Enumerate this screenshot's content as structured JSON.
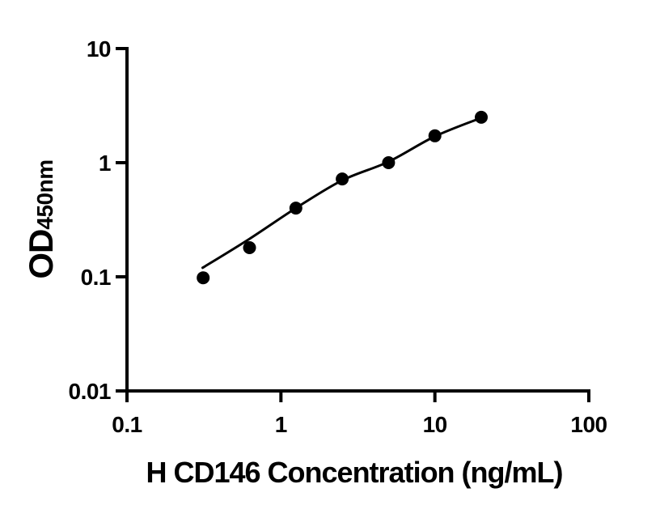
{
  "figure": {
    "description": "ELISA standard curve plot"
  },
  "colors": {
    "foreground": "#000000",
    "background": "#ffffff"
  },
  "chart_data": {
    "type": "scatter",
    "title": "",
    "xlabel": "H CD146 Concentration (ng/mL)",
    "ylabel_main": "OD",
    "ylabel_sub": "450nm",
    "x_scale": "log",
    "y_scale": "log",
    "xlim": [
      0.1,
      100
    ],
    "ylim": [
      0.01,
      10
    ],
    "x_ticks": [
      0.1,
      1,
      10,
      100
    ],
    "x_tick_labels": [
      "0.1",
      "1",
      "10",
      "100"
    ],
    "y_ticks": [
      0.01,
      0.1,
      1,
      10
    ],
    "y_tick_labels": [
      "0.01",
      "0.1",
      "1",
      "10"
    ],
    "grid": false,
    "legend": null,
    "series": [
      {
        "name": "standard-points",
        "marker": "filled-circle",
        "color": "#000000",
        "x": [
          0.3125,
          0.625,
          1.25,
          2.5,
          5,
          10,
          20
        ],
        "y": [
          0.098,
          0.18,
          0.4,
          0.72,
          1.0,
          1.72,
          2.5
        ]
      }
    ],
    "fit_curve": {
      "name": "fitted-standard-curve",
      "color": "#000000",
      "x": [
        0.31,
        0.625,
        1.25,
        2.5,
        5,
        10,
        20
      ],
      "y": [
        0.12,
        0.215,
        0.4,
        0.7,
        1.02,
        1.7,
        2.47
      ]
    }
  }
}
